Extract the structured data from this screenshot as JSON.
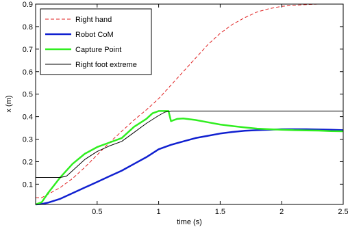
{
  "chart_data": {
    "type": "line",
    "xlabel": "time (s)",
    "ylabel": "x (m)",
    "xlim": [
      0,
      2.5
    ],
    "ylim": [
      0.01,
      0.9
    ],
    "xticks": [
      0.5,
      1,
      1.5,
      2,
      2.5
    ],
    "xtick_labels": [
      "0.5",
      "1",
      "1.5",
      "2",
      "2.5"
    ],
    "yticks": [
      0.1,
      0.2,
      0.3,
      0.4,
      0.5,
      0.6,
      0.7,
      0.8,
      0.9
    ],
    "ytick_labels": [
      "0.1",
      "0.2",
      "0.3",
      "0.4",
      "0.5",
      "0.6",
      "0.7",
      "0.8",
      "0.9"
    ],
    "grid": false,
    "legend_position": "top-left",
    "series": [
      {
        "name": "Right hand",
        "color": "#e02020",
        "style": "dashed",
        "x": [
          0.0,
          0.05,
          0.1,
          0.2,
          0.3,
          0.4,
          0.5,
          0.6,
          0.7,
          0.8,
          0.9,
          1.0,
          1.1,
          1.2,
          1.3,
          1.4,
          1.5,
          1.6,
          1.7,
          1.8,
          1.9,
          2.0,
          2.1,
          2.2,
          2.3,
          2.4,
          2.5
        ],
        "y": [
          0.04,
          0.04,
          0.055,
          0.085,
          0.125,
          0.175,
          0.23,
          0.285,
          0.335,
          0.385,
          0.43,
          0.48,
          0.54,
          0.6,
          0.66,
          0.72,
          0.77,
          0.81,
          0.84,
          0.865,
          0.88,
          0.89,
          0.895,
          0.898,
          0.9,
          0.9,
          0.9
        ]
      },
      {
        "name": "Robot CoM",
        "color": "#1020d0",
        "style": "solid",
        "x": [
          0.0,
          0.05,
          0.1,
          0.2,
          0.3,
          0.4,
          0.5,
          0.6,
          0.7,
          0.8,
          0.9,
          1.0,
          1.1,
          1.2,
          1.3,
          1.4,
          1.5,
          1.6,
          1.7,
          1.8,
          1.9,
          2.0,
          2.1,
          2.2,
          2.3,
          2.4,
          2.5
        ],
        "y": [
          0.01,
          0.012,
          0.018,
          0.035,
          0.06,
          0.085,
          0.11,
          0.135,
          0.16,
          0.19,
          0.22,
          0.255,
          0.275,
          0.29,
          0.305,
          0.315,
          0.325,
          0.332,
          0.337,
          0.34,
          0.342,
          0.344,
          0.344,
          0.344,
          0.343,
          0.342,
          0.34
        ]
      },
      {
        "name": "Capture Point",
        "color": "#30ee20",
        "style": "solid",
        "x": [
          0.0,
          0.05,
          0.1,
          0.2,
          0.3,
          0.4,
          0.5,
          0.6,
          0.7,
          0.75,
          0.8,
          0.9,
          0.95,
          1.0,
          1.08,
          1.1,
          1.15,
          1.2,
          1.3,
          1.4,
          1.5,
          1.6,
          1.7,
          1.8,
          1.9,
          2.0,
          2.1,
          2.2,
          2.3,
          2.4,
          2.5
        ],
        "y": [
          0.01,
          0.02,
          0.06,
          0.13,
          0.19,
          0.235,
          0.265,
          0.285,
          0.305,
          0.33,
          0.355,
          0.39,
          0.415,
          0.425,
          0.425,
          0.38,
          0.39,
          0.392,
          0.385,
          0.375,
          0.365,
          0.358,
          0.352,
          0.347,
          0.344,
          0.342,
          0.34,
          0.339,
          0.338,
          0.336,
          0.335
        ]
      },
      {
        "name": "Right foot extreme",
        "color": "#000000",
        "style": "solid",
        "x": [
          0.0,
          0.2,
          0.25,
          0.3,
          0.4,
          0.5,
          0.6,
          0.7,
          0.8,
          0.9,
          1.0,
          1.05,
          1.1,
          1.5,
          2.0,
          2.5
        ],
        "y": [
          0.13,
          0.13,
          0.135,
          0.16,
          0.21,
          0.245,
          0.27,
          0.29,
          0.33,
          0.37,
          0.405,
          0.42,
          0.425,
          0.425,
          0.425,
          0.425
        ]
      }
    ]
  }
}
